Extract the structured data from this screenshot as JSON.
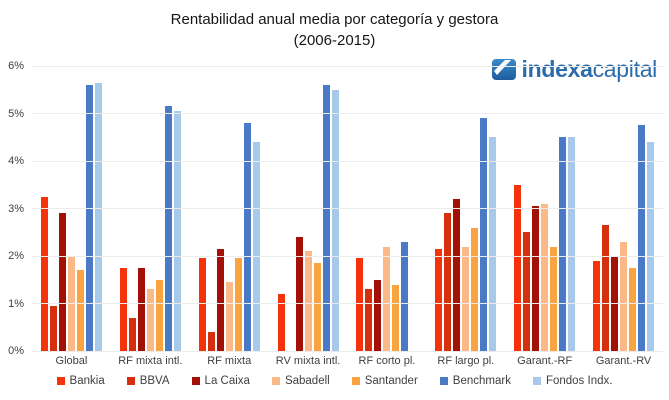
{
  "title": {
    "line1": "Rentabilidad anual media por categoría y gestora",
    "line2": "(2006-2015)"
  },
  "logo": {
    "bold_text": "indexa",
    "light_text": "capital",
    "text_color": "#2b6cac",
    "icon_color_top": "#3b8ccb",
    "icon_color_bottom": "#1f5c9d",
    "icon": "indexa-logo-icon"
  },
  "chart_data": {
    "type": "bar",
    "title": "Rentabilidad anual media por categoría y gestora (2006-2015)",
    "xlabel": "",
    "ylabel": "",
    "ylim": [
      0,
      6
    ],
    "y_tick_labels": [
      "0%",
      "1%",
      "2%",
      "3%",
      "4%",
      "5%",
      "6%"
    ],
    "grid": true,
    "gridline_color": "#ececec",
    "legend_position": "bottom",
    "categories": [
      "Global",
      "RF mixta intl.",
      "RF mixta",
      "RV mixta intl.",
      "RF corto pl.",
      "RF largo pl.",
      "Garant.-RF",
      "Garant.-RV"
    ],
    "series": [
      {
        "name": "Bankia",
        "color": "#f5320a",
        "values": [
          3.25,
          1.75,
          1.95,
          1.2,
          1.95,
          2.15,
          3.5,
          1.9
        ]
      },
      {
        "name": "BBVA",
        "color": "#d52f0e",
        "values": [
          0.95,
          0.7,
          0.4,
          0.0,
          1.3,
          2.9,
          2.5,
          2.65
        ]
      },
      {
        "name": "La Caixa",
        "color": "#a31005",
        "values": [
          2.9,
          1.75,
          2.15,
          2.4,
          1.5,
          3.2,
          3.05,
          2.0
        ]
      },
      {
        "name": "Sabadell",
        "color": "#fcb988",
        "values": [
          2.0,
          1.3,
          1.45,
          2.1,
          2.2,
          2.2,
          3.1,
          2.3
        ]
      },
      {
        "name": "Santander",
        "color": "#f9a341",
        "values": [
          1.7,
          1.5,
          1.95,
          1.85,
          1.4,
          2.6,
          2.2,
          1.75
        ]
      },
      {
        "name": "Benchmark",
        "color": "#4a7ac6",
        "values": [
          5.6,
          5.15,
          4.8,
          5.6,
          2.3,
          4.9,
          4.5,
          4.75
        ]
      },
      {
        "name": "Fondos Indx.",
        "color": "#a7c9ea",
        "values": [
          5.65,
          5.05,
          4.4,
          5.5,
          0.0,
          4.5,
          4.5,
          4.4
        ]
      }
    ]
  }
}
